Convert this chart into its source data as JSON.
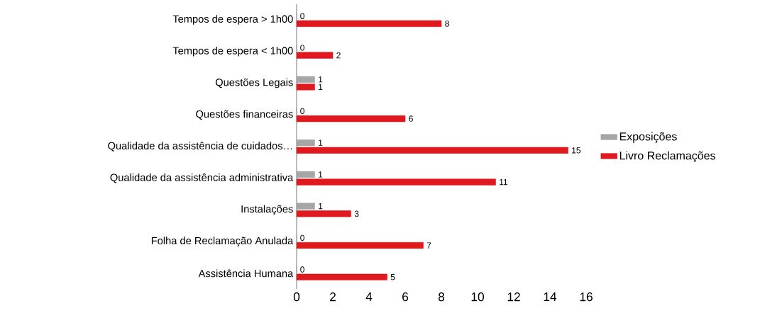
{
  "chart_data": {
    "type": "bar",
    "orientation": "horizontal",
    "categories": [
      "Tempos de espera > 1h00",
      "Tempos de espera < 1h00",
      "Questões Legais",
      "Questões financeiras",
      "Qualidade da assistência de cuidados…",
      "Qualidade da assistência administrativa",
      "Instalações",
      "Folha de Reclamação Anulada",
      "Assistência Humana"
    ],
    "series": [
      {
        "name": "Exposições",
        "color": "#a6a6a6",
        "values": [
          0,
          0,
          1,
          0,
          1,
          1,
          1,
          0,
          0
        ]
      },
      {
        "name": "Livro Reclamações",
        "color": "#e0191f",
        "values": [
          8,
          2,
          1,
          6,
          15,
          11,
          3,
          7,
          5
        ]
      }
    ],
    "xlim": [
      0,
      16
    ],
    "xticks": [
      0,
      2,
      4,
      6,
      8,
      10,
      12,
      14,
      16
    ],
    "data_labels": true,
    "legend": "right"
  }
}
